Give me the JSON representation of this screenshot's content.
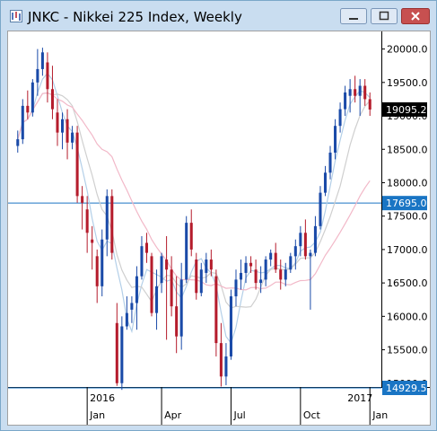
{
  "window": {
    "title": "JNKC - Nikkei 225 Index, Weekly",
    "buttons": [
      "minimize",
      "maximize",
      "close"
    ],
    "colors": {
      "frame": "#c9ddf0",
      "close": "#c75050"
    }
  },
  "chart_data": {
    "type": "candlestick",
    "symbol": "JNKC",
    "ylim": [
      14929.5,
      20250
    ],
    "y_ticks": [
      "20000.0",
      "19500.0",
      "19000.0",
      "18500.0",
      "18000.0",
      "17500.0",
      "17000.0",
      "16500.0",
      "16000.0",
      "15500.0",
      "15000.0"
    ],
    "y_tick_values": [
      20000,
      19500,
      19000,
      18500,
      18000,
      17500,
      17000,
      16500,
      16000,
      15500,
      15000
    ],
    "x_ticks": [
      "Jan",
      "Apr",
      "Jul",
      "Oct",
      "Jan"
    ],
    "x_tick_index": [
      14,
      29,
      43,
      57,
      71
    ],
    "year_labels": [
      {
        "text": "2016",
        "index": 14
      },
      {
        "text": "2017",
        "index": 71
      }
    ],
    "price_label": "19095.2",
    "price_value": 19095.2,
    "hlines": [
      {
        "label": "17695.0",
        "value": 17695.0,
        "color": "#1a75c4"
      },
      {
        "label": "14929.5",
        "value": 14929.5,
        "color": "#1a75c4"
      }
    ],
    "up_color": "#1a4aa8",
    "down_color": "#b51c2c",
    "ma_colors": [
      "#b3cfe8",
      "#cfcfcf",
      "#f2b8c8"
    ],
    "ohlc": [
      [
        18550,
        18780,
        18450,
        18650
      ],
      [
        18650,
        19250,
        18580,
        19150
      ],
      [
        19150,
        19380,
        18950,
        19050
      ],
      [
        19050,
        19550,
        18990,
        19500
      ],
      [
        19500,
        20000,
        19300,
        19700
      ],
      [
        19700,
        20020,
        19600,
        19950
      ],
      [
        19800,
        19950,
        19200,
        19400
      ],
      [
        19400,
        19750,
        18950,
        19100
      ],
      [
        19050,
        19250,
        18550,
        18750
      ],
      [
        18750,
        19050,
        18500,
        18950
      ],
      [
        18950,
        19100,
        18350,
        18600
      ],
      [
        18600,
        18850,
        18500,
        18750
      ],
      [
        18750,
        18850,
        17700,
        17800
      ],
      [
        17800,
        17950,
        17300,
        17700
      ],
      [
        17600,
        17800,
        16950,
        17250
      ],
      [
        17150,
        17350,
        16700,
        17100
      ],
      [
        16900,
        17000,
        16200,
        16450
      ],
      [
        16450,
        17300,
        16300,
        17150
      ],
      [
        17150,
        17900,
        16900,
        17800
      ],
      [
        17800,
        17900,
        16850,
        16950
      ],
      [
        15900,
        16200,
        14960,
        15000
      ],
      [
        15000,
        16000,
        14900,
        15850
      ],
      [
        15850,
        16300,
        15800,
        16050
      ],
      [
        16100,
        16300,
        15900,
        16200
      ],
      [
        16200,
        16750,
        15800,
        16600
      ],
      [
        16600,
        17200,
        16550,
        17050
      ],
      [
        17100,
        17250,
        16800,
        16950
      ],
      [
        16900,
        16950,
        16000,
        16050
      ],
      [
        16050,
        16700,
        15800,
        16450
      ],
      [
        16500,
        16950,
        16350,
        16900
      ],
      [
        16850,
        17200,
        15650,
        16700
      ],
      [
        16700,
        16900,
        16000,
        16150
      ],
      [
        16150,
        16600,
        15450,
        15700
      ],
      [
        15700,
        16800,
        15500,
        16550
      ],
      [
        16550,
        17500,
        16500,
        17400
      ],
      [
        17400,
        17600,
        16900,
        17000
      ],
      [
        16850,
        16950,
        16250,
        16350
      ],
      [
        16350,
        16800,
        16300,
        16700
      ],
      [
        16650,
        16950,
        16500,
        16850
      ],
      [
        16850,
        17000,
        16600,
        16700
      ],
      [
        16600,
        16700,
        15400,
        15600
      ],
      [
        15600,
        15900,
        14950,
        15100
      ],
      [
        15100,
        15600,
        14970,
        15400
      ],
      [
        15400,
        16400,
        15350,
        16300
      ],
      [
        16300,
        16700,
        16150,
        16550
      ],
      [
        16550,
        16850,
        16400,
        16650
      ],
      [
        16650,
        16900,
        16500,
        16800
      ],
      [
        16800,
        16900,
        16650,
        16750
      ],
      [
        16700,
        16850,
        16400,
        16500
      ],
      [
        16500,
        16750,
        16350,
        16550
      ],
      [
        16550,
        16900,
        16450,
        16850
      ],
      [
        16850,
        17000,
        16750,
        16950
      ],
      [
        16950,
        17100,
        16650,
        16700
      ],
      [
        16700,
        16850,
        16400,
        16550
      ],
      [
        16550,
        16800,
        16450,
        16700
      ],
      [
        16700,
        16950,
        16650,
        16900
      ],
      [
        16900,
        17150,
        16700,
        17050
      ],
      [
        17050,
        17350,
        16900,
        17250
      ],
      [
        17250,
        17450,
        16850,
        16900
      ],
      [
        16900,
        17000,
        16100,
        16950
      ],
      [
        16950,
        17500,
        16900,
        17350
      ],
      [
        17350,
        17950,
        17300,
        17850
      ],
      [
        17850,
        18250,
        17800,
        18150
      ],
      [
        18150,
        18550,
        18050,
        18450
      ],
      [
        18450,
        18950,
        18350,
        18850
      ],
      [
        18850,
        19200,
        18750,
        19100
      ],
      [
        19100,
        19450,
        19000,
        19350
      ],
      [
        19300,
        19550,
        19050,
        19400
      ],
      [
        19400,
        19600,
        19200,
        19300
      ],
      [
        19300,
        19550,
        19000,
        19450
      ],
      [
        19450,
        19550,
        19150,
        19250
      ],
      [
        19250,
        19350,
        19000,
        19095
      ]
    ]
  }
}
